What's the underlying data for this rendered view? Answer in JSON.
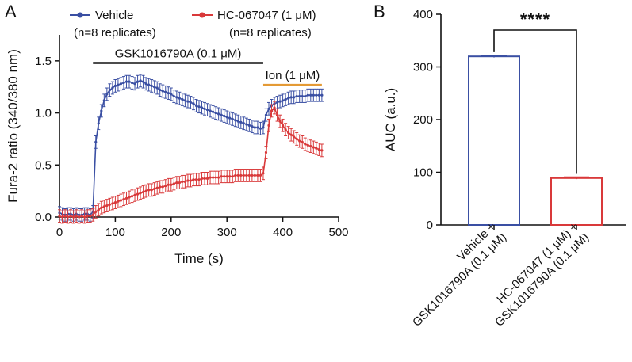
{
  "colors": {
    "vehicle": "#3a4fa3",
    "hc": "#d9393a",
    "ion_bar": "#e49a35",
    "axis": "#111111"
  },
  "chart_data": [
    {
      "panel": "A",
      "type": "line",
      "xlabel": "Time (s)",
      "ylabel": "Fura-2 ratio (340/380 nm)",
      "xlim": [
        0,
        500
      ],
      "ylim": [
        0,
        1.75
      ],
      "xticks": [
        0,
        100,
        200,
        300,
        400,
        500
      ],
      "yticks": [
        "0.0",
        "0.5",
        "1.0",
        "1.5"
      ],
      "annotations": [
        {
          "text": "GSK1016790A (0.1 μM)",
          "x_start": 60,
          "x_end": 365,
          "bar_y": 1.48,
          "bar_color": "axis"
        },
        {
          "text": "Ion (1 μM)",
          "x_start": 365,
          "x_end": 470,
          "bar_y": 1.27,
          "bar_color": "ion_bar"
        }
      ],
      "series": [
        {
          "name": "Vehicle",
          "subtitle": "(n=8 replicates)",
          "color": "vehicle",
          "x": [
            0,
            5,
            10,
            15,
            20,
            25,
            30,
            35,
            40,
            45,
            50,
            55,
            60,
            65,
            70,
            75,
            80,
            85,
            90,
            95,
            100,
            105,
            110,
            115,
            120,
            125,
            130,
            135,
            140,
            145,
            150,
            155,
            160,
            165,
            170,
            175,
            180,
            185,
            190,
            195,
            200,
            205,
            210,
            215,
            220,
            225,
            230,
            235,
            240,
            245,
            250,
            255,
            260,
            265,
            270,
            275,
            280,
            285,
            290,
            295,
            300,
            305,
            310,
            315,
            320,
            325,
            330,
            335,
            340,
            345,
            350,
            355,
            360,
            365,
            370,
            375,
            380,
            385,
            390,
            395,
            400,
            405,
            410,
            415,
            420,
            425,
            430,
            435,
            440,
            445,
            450,
            455,
            460,
            465,
            470
          ],
          "y": [
            0.04,
            0.03,
            0.02,
            0.03,
            0.03,
            0.02,
            0.03,
            0.02,
            0.02,
            0.03,
            0.03,
            0.02,
            0.05,
            0.72,
            0.9,
            1.02,
            1.12,
            1.18,
            1.22,
            1.24,
            1.26,
            1.27,
            1.28,
            1.29,
            1.3,
            1.3,
            1.29,
            1.28,
            1.3,
            1.31,
            1.3,
            1.28,
            1.27,
            1.26,
            1.25,
            1.24,
            1.22,
            1.21,
            1.2,
            1.19,
            1.18,
            1.16,
            1.15,
            1.14,
            1.13,
            1.12,
            1.11,
            1.1,
            1.09,
            1.07,
            1.06,
            1.05,
            1.04,
            1.03,
            1.02,
            1.01,
            1.0,
            0.99,
            0.98,
            0.97,
            0.96,
            0.95,
            0.94,
            0.93,
            0.92,
            0.91,
            0.9,
            0.89,
            0.88,
            0.87,
            0.86,
            0.86,
            0.85,
            0.86,
            0.98,
            1.04,
            1.07,
            1.09,
            1.1,
            1.11,
            1.12,
            1.13,
            1.14,
            1.15,
            1.15,
            1.16,
            1.16,
            1.16,
            1.16,
            1.17,
            1.17,
            1.17,
            1.17,
            1.17,
            1.17
          ],
          "err": 0.06
        },
        {
          "name": "HC-067047 (1 μM)",
          "subtitle": "(n=8 replicates)",
          "color": "hc",
          "x": [
            0,
            5,
            10,
            15,
            20,
            25,
            30,
            35,
            40,
            45,
            50,
            55,
            60,
            65,
            70,
            75,
            80,
            85,
            90,
            95,
            100,
            105,
            110,
            115,
            120,
            125,
            130,
            135,
            140,
            145,
            150,
            155,
            160,
            165,
            170,
            175,
            180,
            185,
            190,
            195,
            200,
            205,
            210,
            215,
            220,
            225,
            230,
            235,
            240,
            245,
            250,
            255,
            260,
            265,
            270,
            275,
            280,
            285,
            290,
            295,
            300,
            305,
            310,
            315,
            320,
            325,
            330,
            335,
            340,
            345,
            350,
            355,
            360,
            365,
            370,
            375,
            380,
            385,
            390,
            395,
            400,
            405,
            410,
            415,
            420,
            425,
            430,
            435,
            440,
            445,
            450,
            455,
            460,
            465,
            470
          ],
          "y": [
            0.01,
            0.0,
            0.01,
            0.0,
            0.01,
            0.0,
            0.01,
            0.0,
            0.01,
            0.0,
            0.01,
            0.01,
            0.02,
            0.05,
            0.07,
            0.09,
            0.1,
            0.11,
            0.12,
            0.13,
            0.14,
            0.15,
            0.16,
            0.17,
            0.18,
            0.19,
            0.2,
            0.21,
            0.22,
            0.23,
            0.24,
            0.25,
            0.26,
            0.26,
            0.27,
            0.28,
            0.29,
            0.29,
            0.3,
            0.31,
            0.31,
            0.32,
            0.33,
            0.33,
            0.34,
            0.34,
            0.35,
            0.35,
            0.36,
            0.36,
            0.36,
            0.37,
            0.37,
            0.37,
            0.38,
            0.38,
            0.38,
            0.38,
            0.39,
            0.39,
            0.39,
            0.39,
            0.39,
            0.4,
            0.4,
            0.4,
            0.4,
            0.4,
            0.4,
            0.4,
            0.4,
            0.4,
            0.4,
            0.42,
            0.62,
            0.88,
            1.02,
            1.05,
            0.98,
            0.92,
            0.88,
            0.84,
            0.81,
            0.79,
            0.77,
            0.75,
            0.73,
            0.72,
            0.7,
            0.69,
            0.68,
            0.67,
            0.66,
            0.65,
            0.64
          ],
          "err": 0.06
        }
      ]
    },
    {
      "panel": "B",
      "type": "bar",
      "ylabel": "AUC (a.u.)",
      "ylim": [
        0,
        400
      ],
      "yticks": [
        "0",
        "100",
        "200",
        "300",
        "400"
      ],
      "categories": [
        "Vehicle + GSK1016790A (0.1 μM)",
        "HC-067047 (1 μM) + GSK1016790A (0.1 μM)"
      ],
      "category_lines": [
        [
          "Vehicle +",
          "GSK1016790A (0.1 μM)"
        ],
        [
          "HC-067047 (1 μM) +",
          "GSK1016790A (0.1 μM)"
        ]
      ],
      "values": [
        320,
        89
      ],
      "errors": [
        2,
        2
      ],
      "colors": [
        "vehicle",
        "hc"
      ],
      "significance": "****"
    }
  ]
}
